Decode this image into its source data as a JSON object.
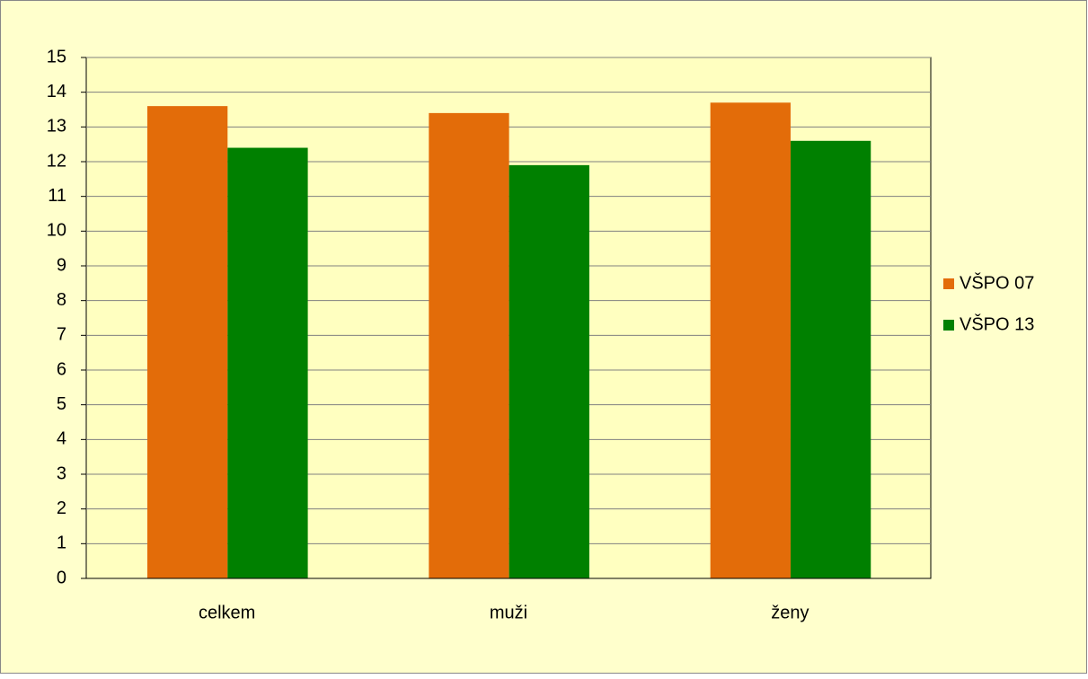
{
  "chart_data": {
    "type": "bar",
    "categories": [
      "celkem",
      "muži",
      "ženy"
    ],
    "series": [
      {
        "name": "VŠPO 07",
        "color": "#e36c09",
        "values": [
          13.6,
          13.4,
          13.7
        ]
      },
      {
        "name": "VŠPO 13",
        "color": "#008000",
        "values": [
          12.4,
          11.9,
          12.6
        ]
      }
    ],
    "ylim": [
      0,
      15
    ],
    "yticks": [
      0,
      1,
      2,
      3,
      4,
      5,
      6,
      7,
      8,
      9,
      10,
      11,
      12,
      13,
      14,
      15
    ],
    "grid": true,
    "legend": "right"
  }
}
